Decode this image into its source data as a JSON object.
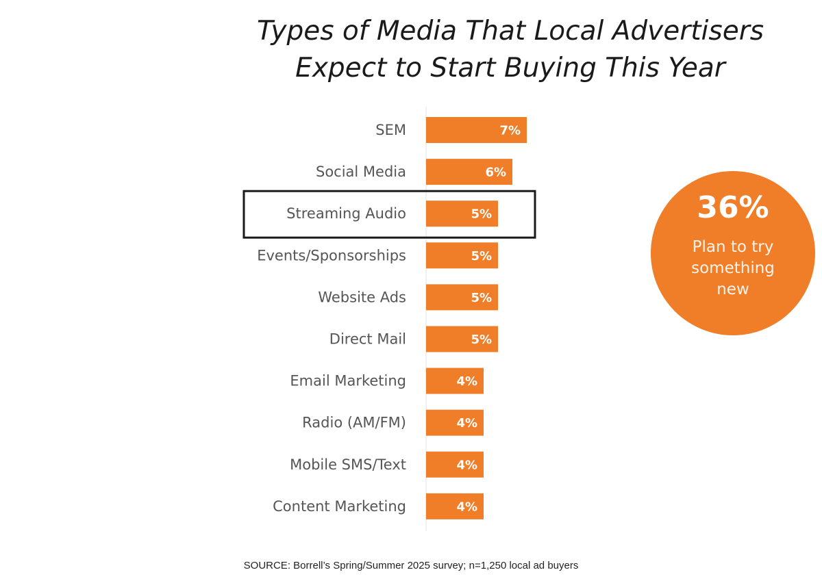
{
  "title_lines": [
    "Types of Media That Local Advertisers",
    "Expect to Start Buying This Year"
  ],
  "chart_data": {
    "type": "bar",
    "orientation": "horizontal",
    "title": "Types of Media That Local Advertisers Expect to Start Buying This Year",
    "categories": [
      "SEM",
      "Social Media",
      "Streaming Audio",
      "Events/Sponsorships",
      "Website Ads",
      "Direct Mail",
      "Email Marketing",
      "Radio (AM/FM)",
      "Mobile SMS/Text",
      "Content Marketing"
    ],
    "values": [
      7,
      6,
      5,
      5,
      5,
      5,
      4,
      4,
      4,
      4
    ],
    "value_labels": [
      "7%",
      "6%",
      "5%",
      "5%",
      "5%",
      "5%",
      "4%",
      "4%",
      "4%",
      "4%"
    ],
    "unit": "%",
    "highlighted_category": "Streaming Audio",
    "bar_color": "#f07d28",
    "grid": false,
    "legend": "none"
  },
  "callout": {
    "value": "36%",
    "lines": [
      "Plan to try",
      "something",
      "new"
    ],
    "color": "#f07d28"
  },
  "source": "SOURCE:  Borrell’s Spring/Summer 2025 survey; n=1,250 local ad buyers"
}
